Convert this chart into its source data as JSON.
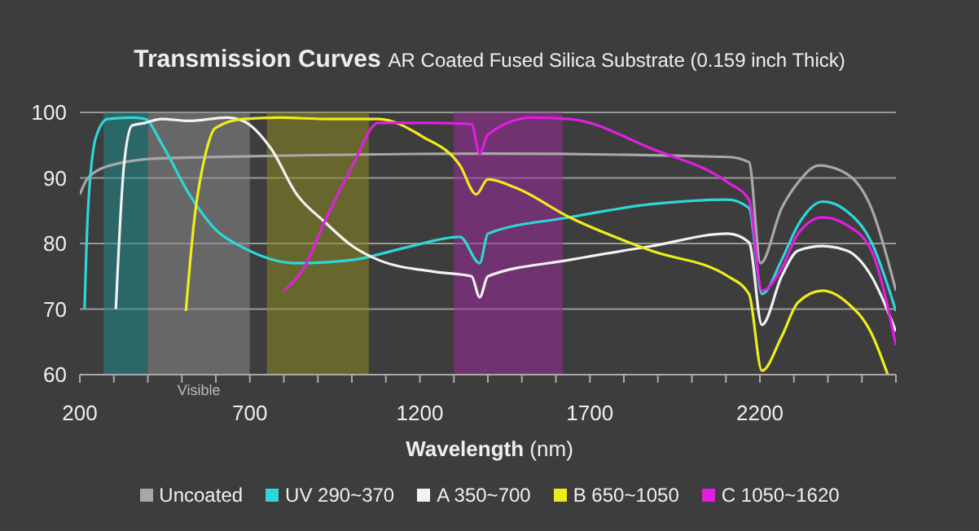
{
  "chart_data": {
    "type": "line",
    "title": "Transmission Curves",
    "subtitle": "AR Coated Fused Silica Substrate (0.159 inch Thick)",
    "xlabel": "Wavelength (nm)",
    "xlim": [
      200,
      2600
    ],
    "xticks": [
      200,
      {
        "value": 300,
        "label": null
      },
      {
        "value": 400,
        "label": null
      },
      {
        "value": 500,
        "label": null
      },
      {
        "value": 600,
        "label": null
      },
      700,
      {
        "value": 800,
        "label": null
      },
      {
        "value": 900,
        "label": null
      },
      {
        "value": 1000,
        "label": null
      },
      {
        "value": 1100,
        "label": null
      },
      1200,
      {
        "value": 1300,
        "label": null
      },
      {
        "value": 1400,
        "label": null
      },
      {
        "value": 1500,
        "label": null
      },
      {
        "value": 1600,
        "label": null
      },
      1700,
      {
        "value": 1800,
        "label": null
      },
      {
        "value": 1900,
        "label": null
      },
      {
        "value": 2000,
        "label": null
      },
      {
        "value": 2100,
        "label": null
      },
      2200,
      {
        "value": 2300,
        "label": null
      },
      {
        "value": 2400,
        "label": null
      },
      {
        "value": 2500,
        "label": null
      },
      {
        "value": 2600,
        "label": null
      }
    ],
    "ylim": [
      60,
      100
    ],
    "yticks": [
      60,
      70,
      80,
      90,
      100
    ],
    "grid": "y",
    "legend": "bottom",
    "marker": "none",
    "line_style": "solid",
    "bands": [
      {
        "axis": "x",
        "from": 270,
        "to": 400,
        "color": "#1f8a8a"
      },
      {
        "axis": "x",
        "from": 400,
        "to": 700,
        "color": "#8a8a8a",
        "label": "Visible"
      },
      {
        "axis": "x",
        "from": 750,
        "to": 1050,
        "color": "#8a8a20"
      },
      {
        "axis": "x",
        "from": 1300,
        "to": 1620,
        "color": "#9a2a9a"
      }
    ],
    "series": [
      {
        "name": "Uncoated",
        "color": "#a8a8a8",
        "x": [
          200,
          224,
          296,
          440,
          1400,
          2106,
          2168,
          2202,
          2264,
          2312,
          2374,
          2456,
          2528,
          2600
        ],
        "values": [
          87.5,
          90,
          92,
          93,
          93.7,
          93.2,
          92.4,
          77,
          85.4,
          89.3,
          91.9,
          90.6,
          85.4,
          72.8
        ]
      },
      {
        "name": "UV 290~370",
        "color": "#2fd6d6",
        "x": [
          214,
          224,
          248,
          282,
          358,
          392,
          440,
          522,
          598,
          680,
          838,
          1002,
          1160,
          1318,
          1376,
          1400,
          1640,
          1880,
          2106,
          2168,
          2206,
          2264,
          2312,
          2384,
          2456,
          2528,
          2600
        ],
        "values": [
          70,
          85,
          96.3,
          99,
          99.2,
          99,
          95.3,
          87.5,
          82.2,
          79.4,
          77,
          77.5,
          79.4,
          81,
          77,
          81.5,
          84,
          86,
          86.7,
          85.4,
          72.3,
          77.5,
          82.8,
          86.4,
          84.9,
          80.2,
          69.7
        ]
      },
      {
        "name": "A 350~700",
        "color": "#f2f2f2",
        "x": [
          306,
          330,
          354,
          392,
          440,
          522,
          632,
          680,
          762,
          838,
          920,
          1002,
          1078,
          1242,
          1352,
          1376,
          1400,
          1640,
          1880,
          2106,
          2168,
          2206,
          2264,
          2312,
          2384,
          2456,
          2528,
          2600
        ],
        "values": [
          70,
          92,
          98,
          98.4,
          99,
          98.7,
          99.2,
          98.7,
          94.5,
          87.5,
          83.3,
          79.6,
          77.5,
          75.7,
          75,
          71.8,
          75,
          77.5,
          79.6,
          81.5,
          80.2,
          67.6,
          75,
          78.9,
          79.6,
          78.9,
          75,
          66.6
        ]
      },
      {
        "name": "B 650~1050",
        "color": "#f0ec1c",
        "x": [
          512,
          536,
          570,
          598,
          680,
          790,
          920,
          1078,
          1208,
          1318,
          1366,
          1400,
          1482,
          1640,
          1880,
          2106,
          2168,
          2206,
          2264,
          2312,
          2384,
          2456,
          2528,
          2576
        ],
        "values": [
          69.7,
          83.3,
          93.7,
          97.6,
          99,
          99.2,
          99,
          99,
          96.3,
          91.9,
          87.5,
          89.8,
          88.5,
          84,
          78.9,
          75,
          72.3,
          60.6,
          65.8,
          71,
          72.8,
          71,
          66.3,
          60
        ]
      },
      {
        "name": "C 1050~1620",
        "color": "#e01ee0",
        "x": [
          800,
          858,
          920,
          1002,
          1078,
          1242,
          1352,
          1376,
          1400,
          1530,
          1640,
          1880,
          2106,
          2168,
          2206,
          2264,
          2312,
          2384,
          2456,
          2528,
          2600
        ],
        "values": [
          72.8,
          76.2,
          83.3,
          91.9,
          98.4,
          98.4,
          98.2,
          93.7,
          96.6,
          99.2,
          99,
          94.5,
          89.3,
          86.7,
          72.8,
          76.2,
          81.5,
          84,
          82.8,
          78.9,
          64.5
        ]
      }
    ]
  }
}
